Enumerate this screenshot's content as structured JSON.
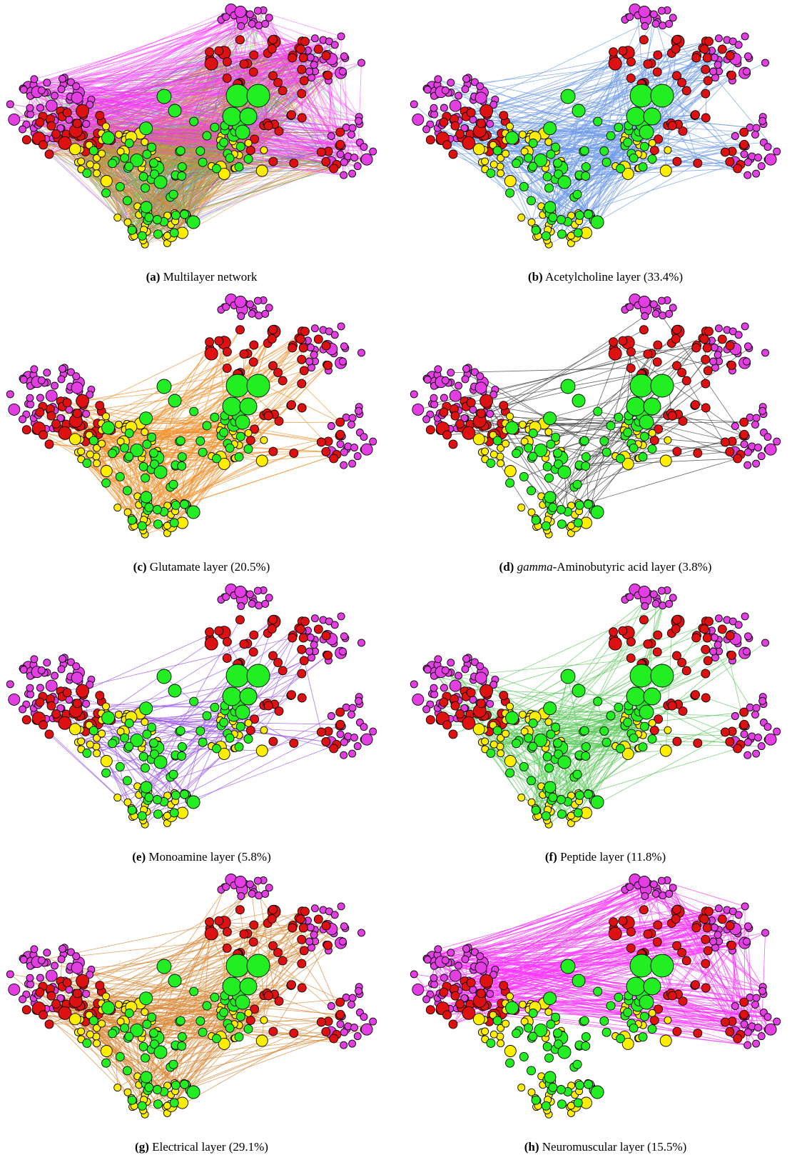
{
  "figure": {
    "panels": [
      {
        "id": "a",
        "letter": "(a)",
        "title": "Multilayer network",
        "pre": "",
        "share": "",
        "layer": "multi",
        "edge_color": ""
      },
      {
        "id": "b",
        "letter": "(b)",
        "title": "Acetylcholine layer",
        "pre": "",
        "share": "(33.4%)",
        "layer": "single",
        "edge_color": "#6f9be8"
      },
      {
        "id": "c",
        "letter": "(c)",
        "title": "Glutamate layer",
        "pre": "",
        "share": "(20.5%)",
        "layer": "single",
        "edge_color": "#f0902a"
      },
      {
        "id": "d",
        "letter": "(d)",
        "title": "-Aminobutyric acid layer",
        "pre": "gamma",
        "share": "(3.8%)",
        "layer": "single",
        "edge_color": "#444444"
      },
      {
        "id": "e",
        "letter": "(e)",
        "title": "Monoamine layer",
        "pre": "",
        "share": "(5.8%)",
        "layer": "single",
        "edge_color": "#9a55e8"
      },
      {
        "id": "f",
        "letter": "(f)",
        "title": "Peptide layer",
        "pre": "",
        "share": "(11.8%)",
        "layer": "single",
        "edge_color": "#5ec95e"
      },
      {
        "id": "g",
        "letter": "(g)",
        "title": "Electrical layer",
        "pre": "",
        "share": "(29.1%)",
        "layer": "single",
        "edge_color": "#d98a3a"
      },
      {
        "id": "h",
        "letter": "(h)",
        "title": "Neuromuscular layer",
        "pre": "",
        "share": "(15.5%)",
        "layer": "single",
        "edge_color": "#ff33ff"
      }
    ],
    "node_colors": {
      "magenta": "#e23ee2",
      "red": "#dd1111",
      "yellow": "#ffee00",
      "green": "#22ee22"
    }
  }
}
